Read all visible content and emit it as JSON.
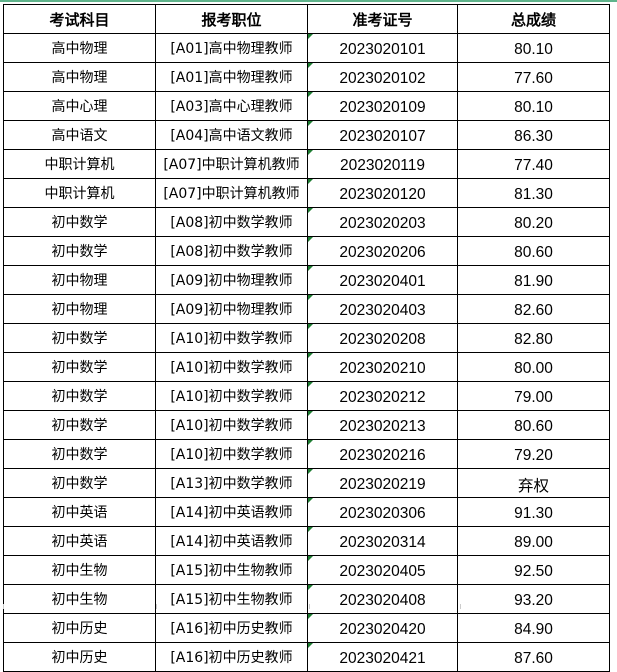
{
  "header": [
    "考试科目",
    "报考职位",
    "准考证号",
    "总成绩"
  ],
  "accent_color": "#5fb38b",
  "rows": [
    [
      "高中物理",
      "[A01]高中物理教师",
      "2023020101",
      "80.10"
    ],
    [
      "高中物理",
      "[A01]高中物理教师",
      "2023020102",
      "77.60"
    ],
    [
      "高中心理",
      "[A03]高中心理教师",
      "2023020109",
      "80.10"
    ],
    [
      "高中语文",
      "[A04]高中语文教师",
      "2023020107",
      "86.30"
    ],
    [
      "中职计算机",
      "[A07]中职计算机教师",
      "2023020119",
      "77.40"
    ],
    [
      "中职计算机",
      "[A07]中职计算机教师",
      "2023020120",
      "81.30"
    ],
    [
      "初中数学",
      "[A08]初中数学教师",
      "2023020203",
      "80.20"
    ],
    [
      "初中数学",
      "[A08]初中数学教师",
      "2023020206",
      "80.60"
    ],
    [
      "初中物理",
      "[A09]初中物理教师",
      "2023020401",
      "81.90"
    ],
    [
      "初中物理",
      "[A09]初中物理教师",
      "2023020403",
      "82.60"
    ],
    [
      "初中数学",
      "[A10]初中数学教师",
      "2023020208",
      "82.80"
    ],
    [
      "初中数学",
      "[A10]初中数学教师",
      "2023020210",
      "80.00"
    ],
    [
      "初中数学",
      "[A10]初中数学教师",
      "2023020212",
      "79.00"
    ],
    [
      "初中数学",
      "[A10]初中数学教师",
      "2023020213",
      "80.60"
    ],
    [
      "初中数学",
      "[A10]初中数学教师",
      "2023020216",
      "79.20"
    ],
    [
      "初中数学",
      "[A13]初中数学教师",
      "2023020219",
      "弃权"
    ],
    [
      "初中英语",
      "[A14]初中英语教师",
      "2023020306",
      "91.30"
    ],
    [
      "初中英语",
      "[A14]初中英语教师",
      "2023020314",
      "89.00"
    ],
    [
      "初中生物",
      "[A15]初中生物教师",
      "2023020405",
      "92.50"
    ],
    [
      "初中生物",
      "[A15]初中生物教师",
      "2023020408",
      "93.20"
    ],
    [
      "初中历史",
      "[A16]初中历史教师",
      "2023020420",
      "84.90"
    ],
    [
      "初中历史",
      "[A16]初中历史教师",
      "2023020421",
      "87.60"
    ]
  ]
}
